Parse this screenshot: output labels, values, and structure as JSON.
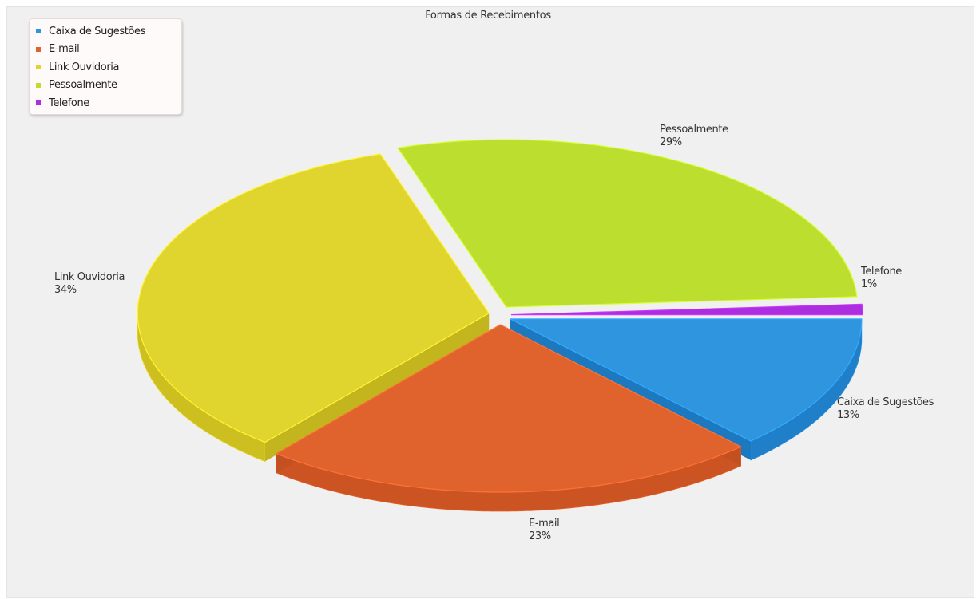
{
  "chart_data": {
    "type": "pie",
    "style": "3d-exploded",
    "title": "Formas de Recebimentos",
    "legend_position": "top-left",
    "slices": [
      {
        "name": "Caixa de Sugestões",
        "value": 13,
        "label": "13%",
        "color": "#2e95de",
        "side_color": "#1f7fc9"
      },
      {
        "name": "E-mail",
        "value": 23,
        "label": "23%",
        "color": "#e0632e",
        "side_color": "#cc5422"
      },
      {
        "name": "Link Ouvidoria",
        "value": 34,
        "label": "34%",
        "color": "#e0d52e",
        "side_color": "#cdbf1f"
      },
      {
        "name": "Pessoalmente",
        "value": 29,
        "label": "29%",
        "color": "#bcde2e",
        "side_color": "#a9c91f"
      },
      {
        "name": "Telefone",
        "value": 1,
        "label": "1%",
        "color": "#ad2ede",
        "side_color": "#9421c4"
      }
    ]
  }
}
